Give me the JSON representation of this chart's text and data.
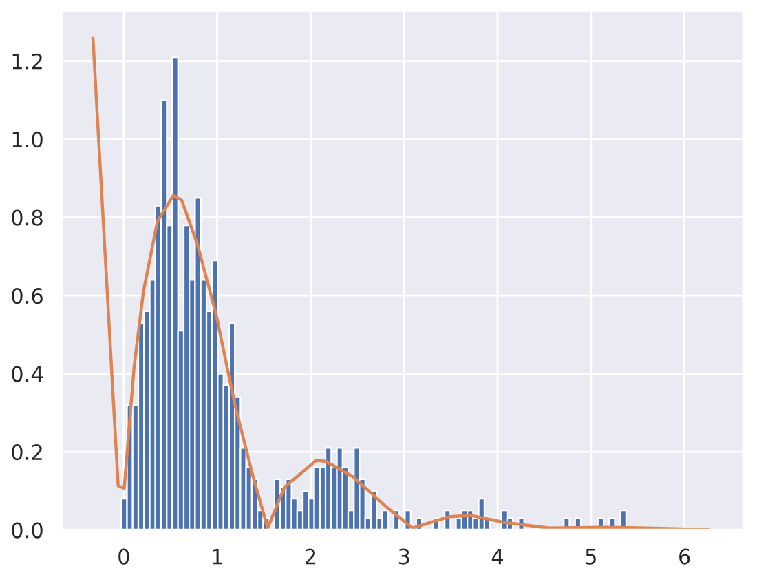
{
  "chart_data": {
    "type": "histogram",
    "grid": true,
    "xlim": [
      -0.66,
      6.63
    ],
    "ylim": [
      0,
      1.33
    ],
    "xticks": [
      0,
      1,
      2,
      3,
      4,
      5,
      6
    ],
    "yticks": [
      {
        "value": 0,
        "label": "0.0"
      },
      0.2,
      0.4,
      0.6,
      0.8,
      {
        "value": 1,
        "label": "1.0"
      },
      1.2
    ],
    "series": [
      {
        "color": "#4c72b0",
        "bins": [
          -0.026,
          0.035,
          0.095,
          0.156,
          0.217,
          0.278,
          0.338,
          0.399,
          0.46,
          0.52,
          0.581,
          0.642,
          0.702,
          0.763,
          0.824,
          0.885,
          0.945,
          1.006,
          1.067,
          1.127,
          1.188,
          1.249,
          1.309,
          1.37,
          1.431,
          1.492,
          1.552,
          1.613,
          1.674,
          1.734,
          1.795,
          1.856,
          1.916,
          1.977,
          2.038,
          2.099,
          2.159,
          2.22,
          2.281,
          2.341,
          2.402,
          2.463,
          2.523,
          2.584,
          2.645,
          2.706,
          2.766,
          2.827,
          2.888,
          2.948,
          3.009,
          3.07,
          3.13,
          3.191,
          3.252,
          3.313,
          3.373,
          3.434,
          3.495,
          3.555,
          3.616,
          3.677,
          3.737,
          3.798,
          3.859,
          3.92,
          3.98,
          4.041,
          4.102,
          4.162,
          4.223,
          4.284,
          4.344,
          4.405,
          4.466,
          4.527,
          4.587,
          4.648,
          4.709,
          4.769,
          4.83,
          4.891,
          4.951,
          5.012,
          5.073,
          5.134,
          5.194,
          5.255,
          5.316,
          5.376
        ],
        "values": [
          0.08,
          0.32,
          0.32,
          0.53,
          0.56,
          0.64,
          0.83,
          1.1,
          0.78,
          1.21,
          0.51,
          0.78,
          0.64,
          0.85,
          0.64,
          0.56,
          0.69,
          0.4,
          0.37,
          0.53,
          0.34,
          0.21,
          0.16,
          0.13,
          0.05,
          0.03,
          0,
          0.13,
          0.11,
          0.13,
          0.08,
          0.05,
          0.1,
          0.08,
          0.16,
          0.16,
          0.21,
          0.16,
          0.21,
          0.16,
          0.05,
          0.21,
          0.13,
          0.03,
          0.1,
          0.03,
          0.05,
          0,
          0.05,
          0,
          0.05,
          0,
          0.03,
          0,
          0,
          0.03,
          0,
          0.05,
          0,
          0.03,
          0.05,
          0.05,
          0.03,
          0.08,
          0.03,
          0,
          0,
          0.05,
          0.03,
          0,
          0.03,
          0,
          0,
          0,
          0,
          0,
          0,
          0,
          0.03,
          0,
          0.03,
          0,
          0,
          0,
          0.03,
          0,
          0.03,
          0,
          0.05
        ]
      },
      {
        "type": "line",
        "color": "#dd8452",
        "x": [
          -0.33,
          -0.06,
          0.005,
          0.11,
          0.21,
          0.36,
          0.53,
          0.62,
          0.79,
          0.99,
          1.19,
          1.38,
          1.54,
          1.72,
          2.06,
          2.16,
          2.45,
          2.84,
          3.09,
          3.48,
          3.62,
          3.72,
          4.06,
          4.55,
          5.14,
          5.43,
          6.26
        ],
        "values": [
          1.26,
          0.113,
          0.107,
          0.416,
          0.61,
          0.79,
          0.856,
          0.844,
          0.73,
          0.55,
          0.32,
          0.14,
          0.005,
          0.11,
          0.178,
          0.176,
          0.137,
          0.053,
          0.005,
          0.034,
          0.036,
          0.037,
          0.02,
          0.005,
          0.007,
          0.006,
          0.001
        ]
      }
    ]
  }
}
